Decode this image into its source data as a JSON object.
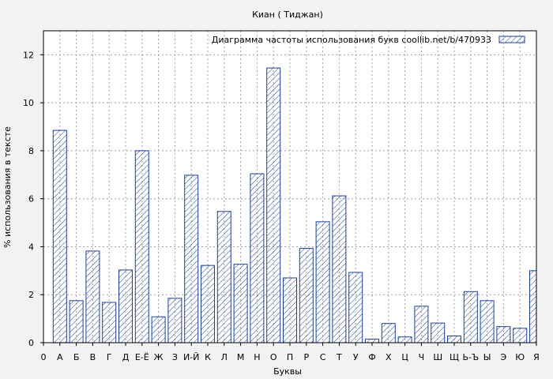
{
  "chart_data": {
    "type": "bar",
    "title": "Киан ( Тиджан)",
    "xlabel": "Буквы",
    "ylabel": "% использования в тексте",
    "ylim": [
      0,
      13
    ],
    "yticks": [
      0,
      2,
      4,
      6,
      8,
      10,
      12
    ],
    "grid": true,
    "legend_position": "top-right",
    "xticks": [
      "0",
      "А",
      "Б",
      "В",
      "Г",
      "Д",
      "Е-Ё",
      "Ж",
      "З",
      "И-Й",
      "К",
      "Л",
      "М",
      "Н",
      "О",
      "П",
      "Р",
      "С",
      "Т",
      "У",
      "Ф",
      "Х",
      "Ц",
      "Ч",
      "Ш",
      "Щ",
      "Ь-Ъ",
      "Ы",
      "Э",
      "Ю",
      "Я"
    ],
    "categories": [
      "А",
      "Б",
      "В",
      "Г",
      "Д",
      "Е-Ё",
      "Ж",
      "З",
      "И-Й",
      "К",
      "Л",
      "М",
      "Н",
      "О",
      "П",
      "Р",
      "С",
      "Т",
      "У",
      "Ф",
      "Х",
      "Ц",
      "Ч",
      "Ш",
      "Щ",
      "Ь-Ъ",
      "Ы",
      "Э",
      "Ю",
      "Я"
    ],
    "series": [
      {
        "name": "Диаграмма частоты использования букв  coollib.net/b/470933",
        "values": [
          8.85,
          1.75,
          3.82,
          1.68,
          3.03,
          8.0,
          1.08,
          1.85,
          6.98,
          3.22,
          5.47,
          3.27,
          7.04,
          11.45,
          2.7,
          3.93,
          5.04,
          6.12,
          2.93,
          0.15,
          0.8,
          0.24,
          1.52,
          0.82,
          0.28,
          2.13,
          1.75,
          0.67,
          0.6,
          3.0
        ]
      }
    ]
  },
  "colors": {
    "bar_stroke": "#1a3fa8",
    "hatch": "#1a3fa8",
    "background": "#f2f2f2",
    "plot_background": "#ffffff",
    "grid": "#a0a0a0"
  }
}
